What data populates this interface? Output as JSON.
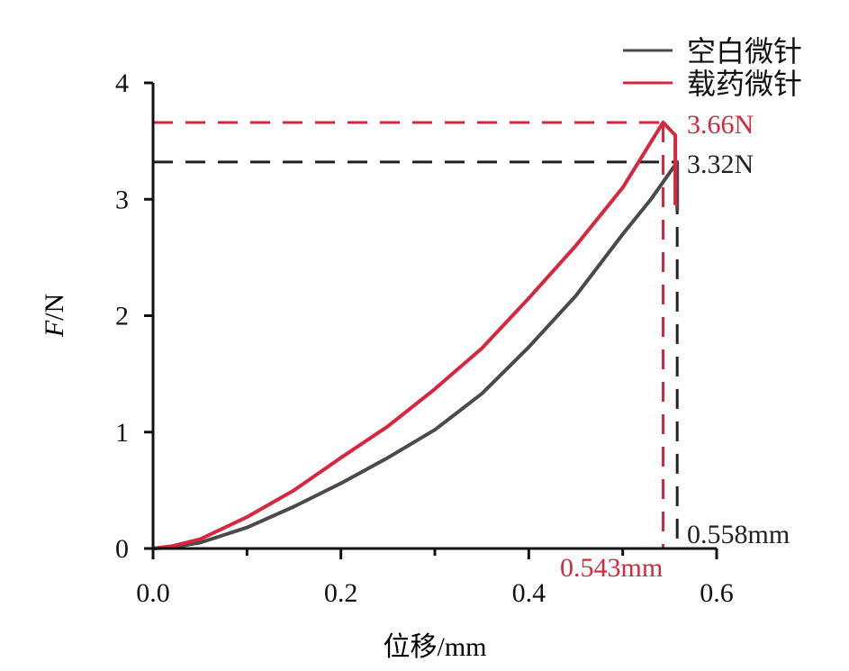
{
  "chart_data": {
    "type": "line",
    "title": "",
    "xlabel": "位移/mm",
    "ylabel_italic": "F",
    "ylabel_unit": "/N",
    "xlim": [
      0,
      0.6
    ],
    "ylim": [
      0,
      4
    ],
    "xticks": [
      "0.0",
      "0.2",
      "0.4",
      "0.6"
    ],
    "xtick_values": [
      0,
      0.2,
      0.4,
      0.6
    ],
    "xminor_values": [
      0.1,
      0.3,
      0.5
    ],
    "yticks": [
      "0",
      "1",
      "2",
      "3",
      "4"
    ],
    "ytick_values": [
      0,
      1,
      2,
      3,
      4
    ],
    "grid": false,
    "legend_position": "top-right",
    "series": [
      {
        "name": "空白微针",
        "color": "#4a4a4a",
        "x": [
          0,
          0.02,
          0.05,
          0.1,
          0.15,
          0.2,
          0.25,
          0.3,
          0.35,
          0.4,
          0.45,
          0.5,
          0.53,
          0.558,
          0.558
        ],
        "y": [
          0,
          0.01,
          0.05,
          0.18,
          0.36,
          0.56,
          0.78,
          1.02,
          1.33,
          1.73,
          2.17,
          2.7,
          3.0,
          3.32,
          2.9
        ]
      },
      {
        "name": "载药微针",
        "color": "#d7263d",
        "x": [
          0,
          0.02,
          0.05,
          0.1,
          0.15,
          0.2,
          0.25,
          0.3,
          0.35,
          0.4,
          0.45,
          0.5,
          0.543,
          0.556,
          0.556
        ],
        "y": [
          0,
          0.02,
          0.08,
          0.27,
          0.5,
          0.78,
          1.05,
          1.37,
          1.72,
          2.15,
          2.6,
          3.1,
          3.66,
          3.55,
          2.95
        ]
      }
    ],
    "annotations": [
      {
        "text": "3.66N",
        "x": 0.543,
        "y": 3.66,
        "color": "#d7263d",
        "axis": "y"
      },
      {
        "text": "3.32N",
        "x": 0.558,
        "y": 3.32,
        "color": "#222222",
        "axis": "y"
      },
      {
        "text": "0.543mm",
        "x": 0.543,
        "y": 3.66,
        "color": "#d7263d",
        "axis": "x"
      },
      {
        "text": "0.558mm",
        "x": 0.558,
        "y": 3.32,
        "color": "#222222",
        "axis": "x"
      }
    ]
  }
}
